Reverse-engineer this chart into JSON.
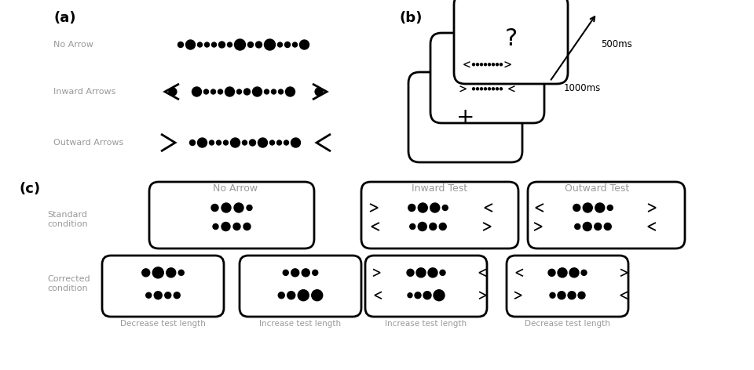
{
  "bg_color": "#ffffff",
  "gray_text": "#999999",
  "title_a": "(a)",
  "title_b": "(b)",
  "title_c": "(c)",
  "label_no_arrow": "No Arrow",
  "label_inward": "Inward Arrows",
  "label_outward": "Outward Arrows",
  "label_standard": "Standard\ncondition",
  "label_corrected": "Corrected\ncondition",
  "col_headers": [
    "No Arrow",
    "Inward Test",
    "Outward Test"
  ],
  "bottom_labels": [
    "Decrease test length",
    "Increase test length",
    "Increase test length",
    "Decrease test length"
  ],
  "time_500": "500ms",
  "time_1000": "1000ms"
}
